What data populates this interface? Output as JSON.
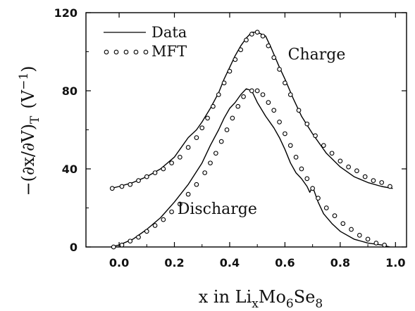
{
  "chart_data": {
    "type": "line",
    "xlim": [
      -0.12,
      1.04
    ],
    "ylim": [
      0,
      120
    ],
    "xticks": [
      "0.0",
      "0.2",
      "0.4",
      "0.6",
      "0.8",
      "1.0"
    ],
    "xtick_values": [
      0.0,
      0.2,
      0.4,
      0.6,
      0.8,
      1.0
    ],
    "yticks": [
      "0",
      "40",
      "80",
      "120"
    ],
    "ytick_values": [
      0,
      40,
      80,
      120
    ],
    "xlabel": {
      "pre": "x in Li",
      "sub1": "x",
      "mid1": "Mo",
      "sub2": "6",
      "mid2": "Se",
      "sub3": "8"
    },
    "ylabel": {
      "main": "−(∂x/∂V)",
      "sub": "T",
      "unit_pre": "(V",
      "unit_sup": "−1",
      "unit_post": ")"
    },
    "legend": [
      {
        "label": "Data",
        "style": "line"
      },
      {
        "label": "MFT",
        "style": "circles"
      }
    ],
    "legend_position": "top-left",
    "annotations": [
      {
        "text": "Charge",
        "x": 0.715,
        "y": 96
      },
      {
        "text": "Discharge",
        "x": 0.355,
        "y": 17
      }
    ],
    "series": [
      {
        "name": "Data",
        "curve": "Charge",
        "style": "line",
        "x": [
          -0.03,
          0.0,
          0.05,
          0.1,
          0.15,
          0.2,
          0.25,
          0.28,
          0.3,
          0.33,
          0.36,
          0.38,
          0.4,
          0.42,
          0.44,
          0.46,
          0.48,
          0.5,
          0.53,
          0.55,
          0.58,
          0.6,
          0.63,
          0.66,
          0.7,
          0.75,
          0.8,
          0.85,
          0.9,
          0.95,
          0.99
        ],
        "y": [
          30,
          31,
          33,
          36,
          40,
          46,
          56,
          60,
          64,
          71,
          79,
          86,
          92,
          98,
          103,
          107,
          110,
          110,
          108,
          102,
          92,
          86,
          76,
          67,
          58,
          48,
          41,
          36,
          33,
          31,
          30
        ]
      },
      {
        "name": "MFT",
        "curve": "Charge",
        "style": "circles",
        "x": [
          -0.025,
          0.01,
          0.04,
          0.07,
          0.1,
          0.13,
          0.16,
          0.19,
          0.22,
          0.25,
          0.28,
          0.3,
          0.32,
          0.34,
          0.36,
          0.38,
          0.4,
          0.42,
          0.44,
          0.46,
          0.48,
          0.5,
          0.52,
          0.54,
          0.56,
          0.58,
          0.6,
          0.62,
          0.65,
          0.68,
          0.71,
          0.74,
          0.77,
          0.8,
          0.83,
          0.86,
          0.89,
          0.92,
          0.95,
          0.98
        ],
        "y": [
          30,
          31,
          32,
          34,
          36,
          38,
          40,
          43,
          46,
          51,
          56,
          61,
          66,
          72,
          78,
          84,
          90,
          96,
          101,
          106,
          109,
          110,
          108,
          103,
          97,
          91,
          84,
          78,
          70,
          63,
          57,
          52,
          48,
          44,
          41,
          39,
          36,
          34,
          33,
          31
        ]
      },
      {
        "name": "Data",
        "curve": "Discharge",
        "style": "line",
        "x": [
          -0.03,
          0.0,
          0.05,
          0.1,
          0.15,
          0.2,
          0.25,
          0.3,
          0.33,
          0.36,
          0.38,
          0.4,
          0.42,
          0.44,
          0.46,
          0.48,
          0.5,
          0.53,
          0.56,
          0.58,
          0.6,
          0.62,
          0.64,
          0.66,
          0.68,
          0.69,
          0.7,
          0.72,
          0.74,
          0.77,
          0.8,
          0.85,
          0.9,
          0.95,
          0.98
        ],
        "y": [
          0,
          1,
          4,
          9,
          15,
          23,
          32,
          43,
          52,
          60,
          66,
          71,
          74,
          78,
          81,
          80,
          74,
          67,
          61,
          56,
          50,
          43,
          38,
          35,
          31,
          28,
          31,
          23,
          17,
          12,
          8,
          4,
          2,
          1,
          0
        ]
      },
      {
        "name": "MFT",
        "curve": "Discharge",
        "style": "circles",
        "x": [
          -0.02,
          0.01,
          0.04,
          0.07,
          0.1,
          0.13,
          0.16,
          0.19,
          0.22,
          0.25,
          0.28,
          0.31,
          0.33,
          0.35,
          0.37,
          0.39,
          0.41,
          0.43,
          0.45,
          0.48,
          0.5,
          0.52,
          0.54,
          0.56,
          0.58,
          0.6,
          0.62,
          0.64,
          0.66,
          0.68,
          0.7,
          0.72,
          0.75,
          0.78,
          0.81,
          0.84,
          0.87,
          0.9,
          0.93,
          0.96
        ],
        "y": [
          0,
          1,
          3,
          5,
          8,
          11,
          14,
          18,
          22,
          27,
          32,
          38,
          43,
          48,
          54,
          60,
          66,
          72,
          77,
          80,
          80,
          78,
          74,
          70,
          64,
          58,
          52,
          46,
          40,
          35,
          30,
          25,
          20,
          16,
          12,
          9,
          6,
          4,
          2,
          1
        ]
      }
    ]
  }
}
